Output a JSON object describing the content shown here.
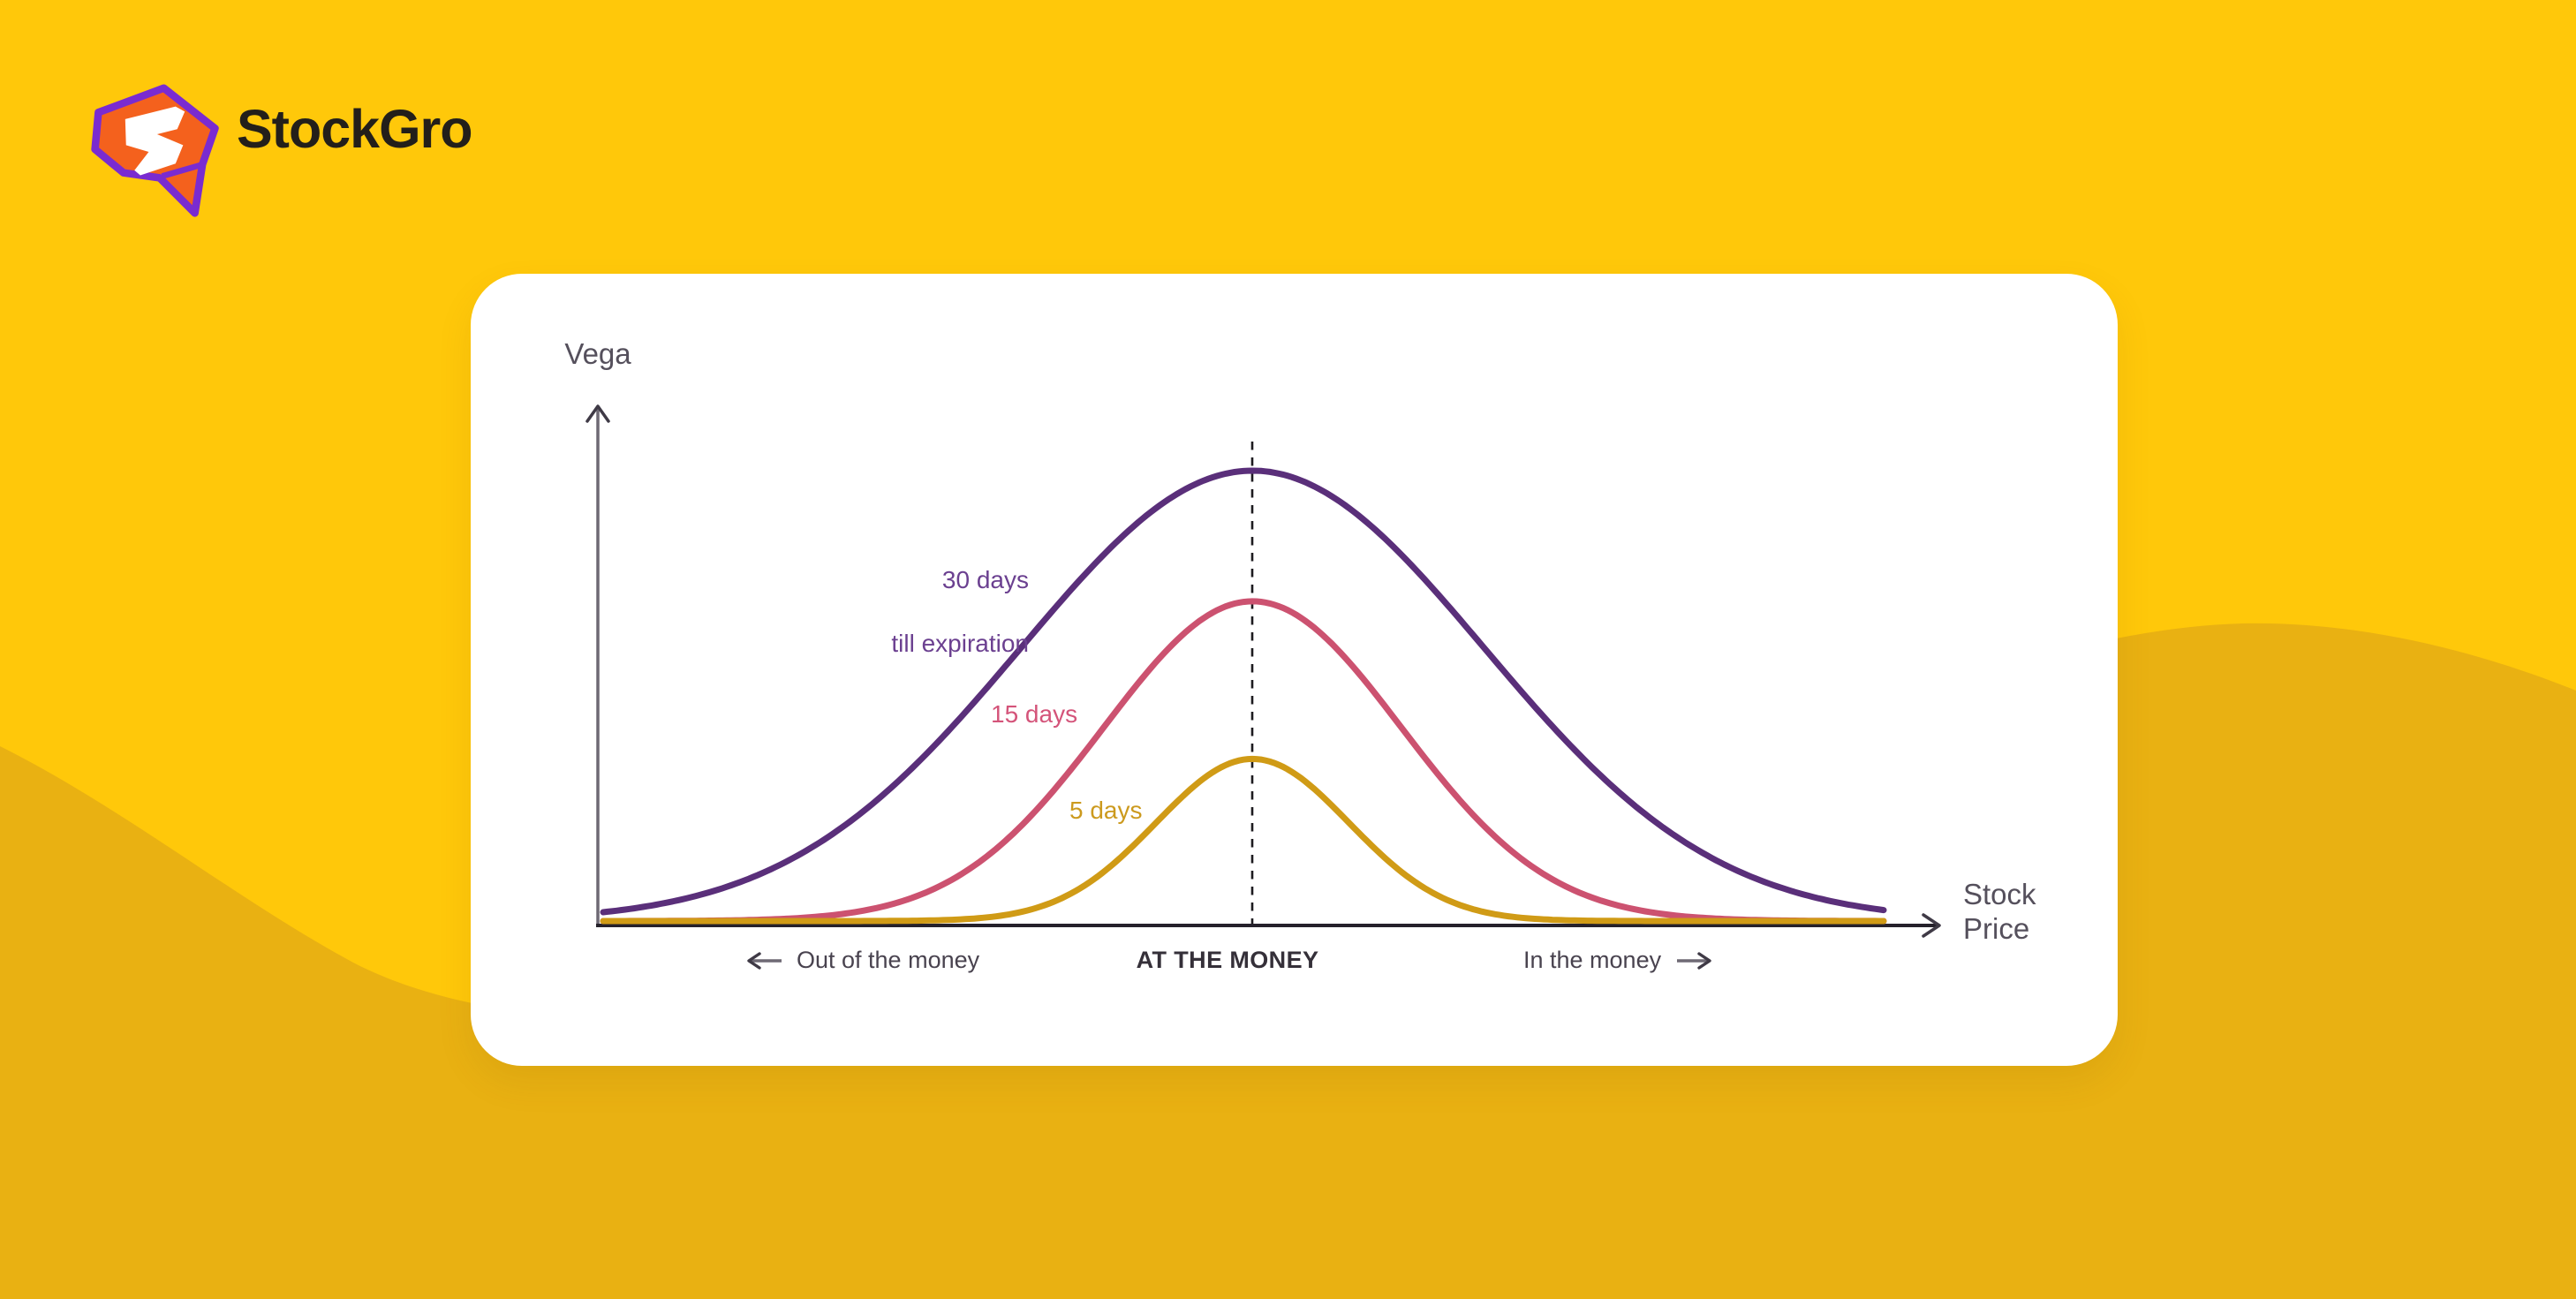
{
  "page": {
    "background_color": "#FFC80A",
    "wave_color": "#E9B112"
  },
  "logo": {
    "brand": "StockGro",
    "text_color": "#231F1A",
    "icon_outline_color": "#7A2BD0",
    "icon_fill_color": "#F4611D",
    "icon_bolt_color": "#FFFFFF"
  },
  "chart_data": {
    "type": "line",
    "title": "",
    "ylabel": "Vega",
    "xlabel": "Stock Price",
    "axes": {
      "x_color": "#25212B",
      "y_color": "#6E6974",
      "arrowhead_color": "#3F3A46",
      "gridlines": false,
      "tick_labels": "none"
    },
    "atm_marker": {
      "style": "dashed-vertical-line",
      "color": "#1D1B1F",
      "x_fraction": 0.489
    },
    "x_axis_zones": [
      {
        "label": "Out of the money",
        "arrow": "left"
      },
      {
        "label": "AT THE MONEY",
        "emphasis": true
      },
      {
        "label": "In the money",
        "arrow": "right"
      }
    ],
    "series": [
      {
        "name": "30 days till expiration",
        "label_lines": [
          "30 days",
          "till expiration"
        ],
        "color": "#5A2F7A",
        "label_color": "#6B4090",
        "curve": "gaussian",
        "center": "ATM",
        "peak_vega_rel": 1.0,
        "sigma_x_fraction": 0.173
      },
      {
        "name": "15 days",
        "label_lines": [
          "15 days"
        ],
        "color": "#CC5270",
        "label_color": "#D4547A",
        "curve": "gaussian",
        "center": "ATM",
        "peak_vega_rel": 0.71,
        "sigma_x_fraction": 0.111
      },
      {
        "name": "5 days",
        "label_lines": [
          "5 days"
        ],
        "color": "#D09B16",
        "label_color": "#CC9A1E",
        "curve": "gaussian",
        "center": "ATM",
        "peak_vega_rel": 0.36,
        "sigma_x_fraction": 0.072
      }
    ]
  }
}
